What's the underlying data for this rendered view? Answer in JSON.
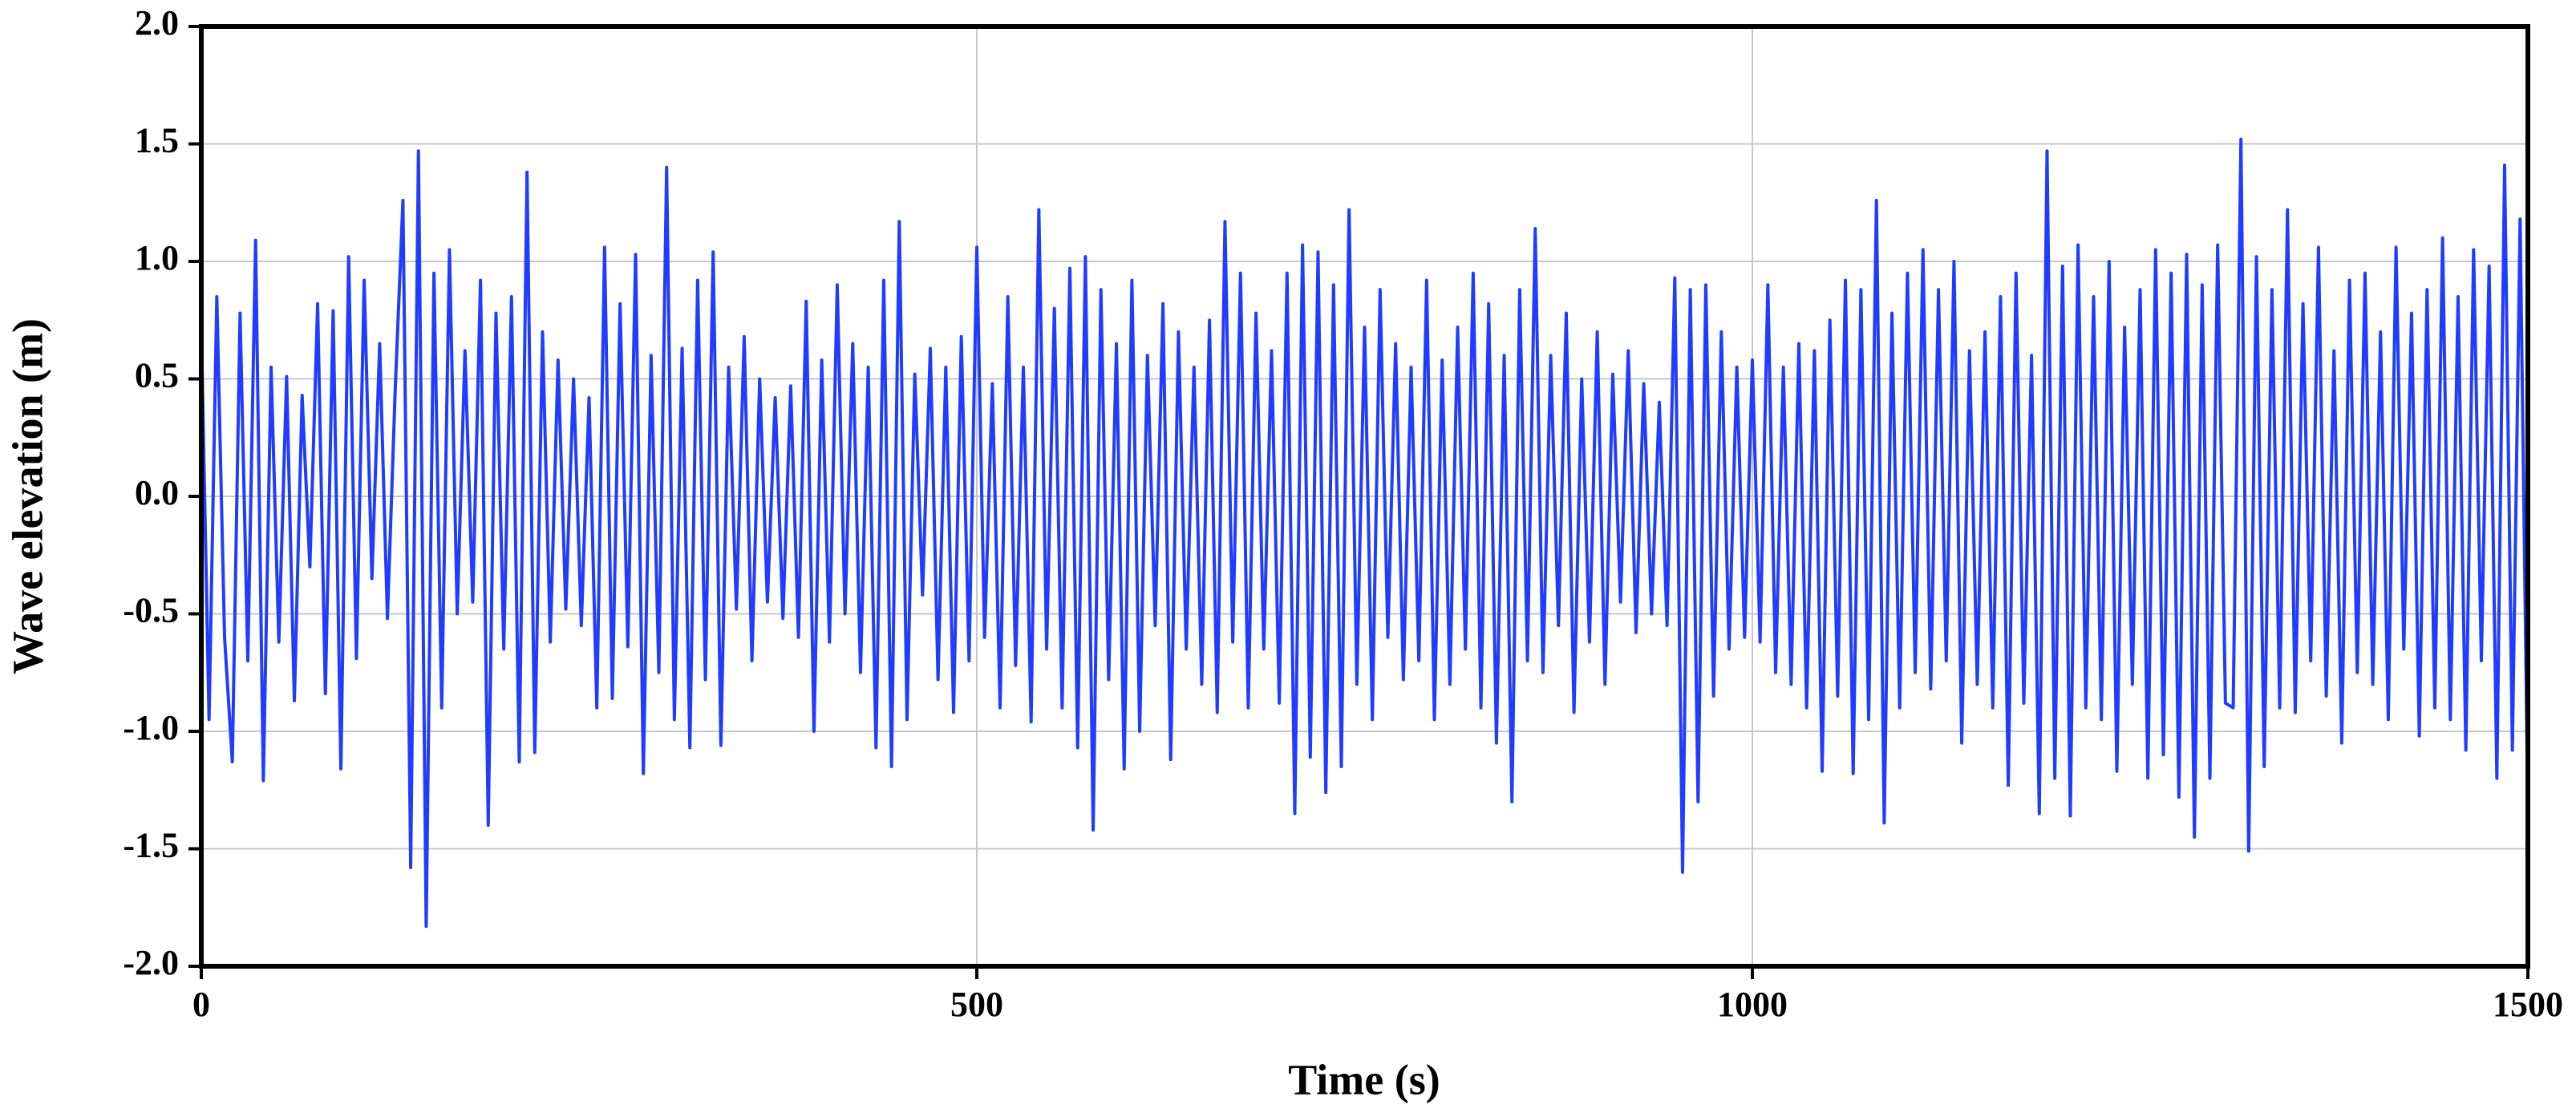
{
  "chart_data": {
    "type": "line",
    "xlabel": "Time (s)",
    "ylabel": "Wave elevation (m)",
    "xlim": [
      0,
      1500
    ],
    "xticks": [
      0,
      500,
      1000,
      1500
    ],
    "ylim": [
      -2,
      2
    ],
    "yticks": [
      {
        "value": -2,
        "label": "-2.0"
      },
      -1.5,
      {
        "value": -1,
        "label": "-1.0"
      },
      -0.5,
      {
        "value": 0,
        "label": "0.0"
      },
      0.5,
      {
        "value": 1,
        "label": "1.0"
      },
      1.5,
      {
        "value": 2,
        "label": "2.0"
      }
    ],
    "grid": true,
    "x": [
      0,
      5,
      10,
      15,
      20,
      25,
      30,
      35,
      40,
      45,
      50,
      55,
      60,
      65,
      70,
      75,
      80,
      85,
      90,
      95,
      100,
      105,
      110,
      115,
      120,
      125,
      130,
      135,
      140,
      145,
      150,
      155,
      160,
      165,
      170,
      175,
      180,
      185,
      190,
      195,
      200,
      205,
      210,
      215,
      220,
      225,
      230,
      235,
      240,
      245,
      250,
      255,
      260,
      265,
      270,
      275,
      280,
      285,
      290,
      295,
      300,
      305,
      310,
      315,
      320,
      325,
      330,
      335,
      340,
      345,
      350,
      355,
      360,
      365,
      370,
      375,
      380,
      385,
      390,
      395,
      400,
      405,
      410,
      415,
      420,
      425,
      430,
      435,
      440,
      445,
      450,
      455,
      460,
      465,
      470,
      475,
      480,
      485,
      490,
      495,
      500,
      505,
      510,
      515,
      520,
      525,
      530,
      535,
      540,
      545,
      550,
      555,
      560,
      565,
      570,
      575,
      580,
      585,
      590,
      595,
      600,
      605,
      610,
      615,
      620,
      625,
      630,
      635,
      640,
      645,
      650,
      655,
      660,
      665,
      670,
      675,
      680,
      685,
      690,
      695,
      700,
      705,
      710,
      715,
      720,
      725,
      730,
      735,
      740,
      745,
      750,
      755,
      760,
      765,
      770,
      775,
      780,
      785,
      790,
      795,
      800,
      805,
      810,
      815,
      820,
      825,
      830,
      835,
      840,
      845,
      850,
      855,
      860,
      865,
      870,
      875,
      880,
      885,
      890,
      895,
      900,
      905,
      910,
      915,
      920,
      925,
      930,
      935,
      940,
      945,
      950,
      955,
      960,
      965,
      970,
      975,
      980,
      985,
      990,
      995,
      1000,
      1005,
      1010,
      1015,
      1020,
      1025,
      1030,
      1035,
      1040,
      1045,
      1050,
      1055,
      1060,
      1065,
      1070,
      1075,
      1080,
      1085,
      1090,
      1095,
      1100,
      1105,
      1110,
      1115,
      1120,
      1125,
      1130,
      1135,
      1140,
      1145,
      1150,
      1155,
      1160,
      1165,
      1170,
      1175,
      1180,
      1185,
      1190,
      1195,
      1200,
      1205,
      1210,
      1215,
      1220,
      1225,
      1230,
      1235,
      1240,
      1245,
      1250,
      1255,
      1260,
      1265,
      1270,
      1275,
      1280,
      1285,
      1290,
      1295,
      1300,
      1305,
      1310,
      1315,
      1320,
      1325,
      1330,
      1335,
      1340,
      1345,
      1350,
      1355,
      1360,
      1365,
      1370,
      1375,
      1380,
      1385,
      1390,
      1395,
      1400,
      1405,
      1410,
      1415,
      1420,
      1425,
      1430,
      1435,
      1440,
      1445,
      1450,
      1455,
      1460,
      1465,
      1470,
      1475,
      1480,
      1485,
      1490,
      1495,
      1500
    ],
    "series": [
      {
        "color": "#1f3cff",
        "values": [
          0.72,
          -0.95,
          0.85,
          -0.6,
          -1.13,
          0.78,
          -0.7,
          1.09,
          -1.21,
          0.55,
          -0.62,
          0.51,
          -0.87,
          0.43,
          -0.3,
          0.82,
          -0.84,
          0.79,
          -1.16,
          1.02,
          -0.69,
          0.92,
          -0.35,
          0.65,
          -0.52,
          0.45,
          1.26,
          -1.58,
          1.47,
          -1.83,
          0.95,
          -0.9,
          1.05,
          -0.5,
          0.62,
          -0.45,
          0.92,
          -1.4,
          0.78,
          -0.65,
          0.85,
          -1.13,
          1.38,
          -1.09,
          0.7,
          -0.62,
          0.58,
          -0.48,
          0.5,
          -0.55,
          0.42,
          -0.9,
          1.06,
          -0.86,
          0.82,
          -0.64,
          1.03,
          -1.18,
          0.6,
          -0.75,
          1.4,
          -0.95,
          0.63,
          -1.07,
          0.92,
          -0.78,
          1.04,
          -1.06,
          0.55,
          -0.48,
          0.68,
          -0.7,
          0.5,
          -0.45,
          0.42,
          -0.52,
          0.47,
          -0.6,
          0.83,
          -1.0,
          0.58,
          -0.62,
          0.9,
          -0.5,
          0.65,
          -0.75,
          0.55,
          -1.07,
          0.92,
          -1.15,
          1.17,
          -0.95,
          0.52,
          -0.42,
          0.63,
          -0.78,
          0.55,
          -0.92,
          0.68,
          -0.7,
          1.06,
          -0.6,
          0.48,
          -0.9,
          0.85,
          -0.72,
          0.55,
          -0.96,
          1.22,
          -0.65,
          0.8,
          -0.9,
          0.97,
          -1.07,
          1.02,
          -1.42,
          0.88,
          -0.78,
          0.65,
          -1.16,
          0.92,
          -1.0,
          0.6,
          -0.55,
          0.82,
          -1.12,
          0.7,
          -0.65,
          0.55,
          -0.8,
          0.75,
          -0.92,
          1.17,
          -0.62,
          0.95,
          -0.9,
          0.78,
          -0.65,
          0.62,
          -0.88,
          0.95,
          -1.35,
          1.07,
          -1.11,
          1.04,
          -1.26,
          0.9,
          -1.15,
          1.22,
          -0.8,
          0.72,
          -0.95,
          0.88,
          -0.6,
          0.65,
          -0.78,
          0.55,
          -0.7,
          0.92,
          -0.95,
          0.58,
          -0.8,
          0.72,
          -0.65,
          0.95,
          -0.9,
          0.82,
          -1.05,
          0.6,
          -1.3,
          0.88,
          -0.7,
          1.14,
          -0.75,
          0.6,
          -0.55,
          0.78,
          -0.92,
          0.5,
          -0.62,
          0.7,
          -0.8,
          0.52,
          -0.45,
          0.62,
          -0.58,
          0.48,
          -0.5,
          0.4,
          -0.55,
          0.93,
          -1.6,
          0.88,
          -1.3,
          0.9,
          -0.85,
          0.7,
          -0.65,
          0.55,
          -0.6,
          0.58,
          -0.62,
          0.9,
          -0.75,
          0.55,
          -0.8,
          0.65,
          -0.9,
          0.62,
          -1.17,
          0.75,
          -0.85,
          0.92,
          -1.18,
          0.88,
          -0.95,
          1.26,
          -1.39,
          0.78,
          -0.9,
          0.95,
          -0.75,
          1.05,
          -0.82,
          0.88,
          -0.7,
          1.0,
          -1.05,
          0.62,
          -0.8,
          0.7,
          -0.9,
          0.85,
          -1.23,
          0.95,
          -0.88,
          0.6,
          -1.35,
          1.47,
          -1.2,
          0.98,
          -1.36,
          1.07,
          -0.9,
          0.85,
          -0.95,
          1.0,
          -1.17,
          0.72,
          -0.8,
          0.88,
          -1.2,
          1.05,
          -1.1,
          0.95,
          -1.28,
          1.03,
          -1.45,
          0.9,
          -1.2,
          1.07,
          -0.88,
          -0.9,
          1.52,
          -1.51,
          1.02,
          -1.15,
          0.88,
          -0.9,
          1.22,
          -0.92,
          0.82,
          -0.7,
          1.06,
          -0.85,
          0.62,
          -1.05,
          0.92,
          -0.75,
          0.95,
          -0.8,
          0.7,
          -0.95,
          1.06,
          -0.65,
          0.78,
          -1.02,
          0.88,
          -0.9,
          1.1,
          -0.95,
          0.85,
          -1.08,
          1.05,
          -0.7,
          0.98,
          -1.2,
          1.41,
          -1.08,
          1.18,
          -1.35
        ]
      }
    ]
  }
}
